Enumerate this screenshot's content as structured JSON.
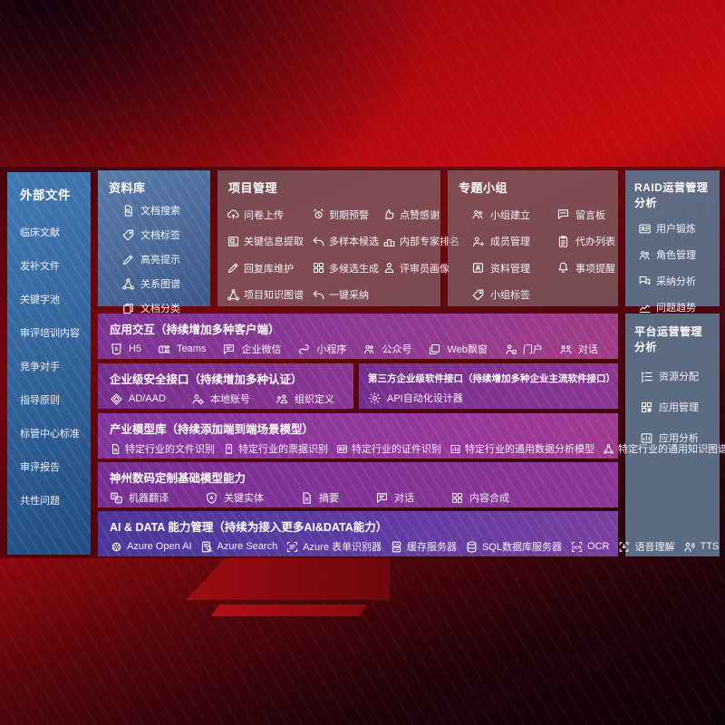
{
  "colors": {
    "background_red": "#c50b10",
    "backdrop_maroon": "#1e030a",
    "sidebar_blue": "#2f6fae",
    "box_gray": "#8f8a93",
    "slate_gray_blue": "#5d728a",
    "row_purple": "#8136a0",
    "ai_row_indigo": "#5d3ba3"
  },
  "sidebar": {
    "title": "外部文件",
    "items": [
      {
        "label": "临床文献"
      },
      {
        "label": "发补文件"
      },
      {
        "label": "关键字池"
      },
      {
        "label": "审评培训内容"
      },
      {
        "label": "竞争对手"
      },
      {
        "label": "指导原则"
      },
      {
        "label": "标管中心标准"
      },
      {
        "label": "审评报告"
      },
      {
        "label": "共性问题"
      }
    ]
  },
  "top_boxes": [
    {
      "title": "资料库",
      "items": [
        {
          "icon": "doc-search",
          "label": "文档搜索"
        },
        {
          "icon": "tag",
          "label": "文档标签"
        },
        {
          "icon": "pencil",
          "label": "高亮提示"
        },
        {
          "icon": "network",
          "label": "关系图谱"
        },
        {
          "icon": "docs",
          "label": "文档分类"
        }
      ]
    },
    {
      "title": "项目管理",
      "items": [
        {
          "icon": "cloud-upload",
          "label": "问卷上传"
        },
        {
          "icon": "alarm",
          "label": "到期预警"
        },
        {
          "icon": "thumbs-up",
          "label": "点赞感谢"
        },
        {
          "icon": "image-doc",
          "label": "关键信息提取"
        },
        {
          "icon": "reply-arrow",
          "label": "多样本候选"
        },
        {
          "icon": "podium",
          "label": "内部专家排名"
        },
        {
          "icon": "pencil",
          "label": "回复库维护"
        },
        {
          "icon": "puzzle-grid",
          "label": "多候选生成"
        },
        {
          "icon": "person",
          "label": "评审员画像"
        },
        {
          "icon": "network",
          "label": "项目知识图谱"
        },
        {
          "icon": "reply-arrow",
          "label": "一键采纳"
        }
      ]
    },
    {
      "title": "专题小组",
      "items": [
        {
          "icon": "people",
          "label": "小组建立"
        },
        {
          "icon": "bbs",
          "label": "留言板"
        },
        {
          "icon": "person-add",
          "label": "成员管理"
        },
        {
          "icon": "clipboard",
          "label": "代办列表"
        },
        {
          "icon": "card-box",
          "label": "资料管理"
        },
        {
          "icon": "bell",
          "label": "事项提醒"
        },
        {
          "icon": "tag",
          "label": "小组标签"
        }
      ]
    },
    {
      "title": "RAID运营管理分析",
      "items": [
        {
          "icon": "id-card",
          "label": "用户锻炼"
        },
        {
          "icon": "people",
          "label": "角色管理"
        },
        {
          "icon": "chat-qa",
          "label": "采纳分析"
        },
        {
          "icon": "trend",
          "label": "问题趋势"
        }
      ]
    }
  ],
  "platform_box": {
    "title": "平台运营管理分析",
    "items": [
      {
        "icon": "list",
        "label": "资源分配"
      },
      {
        "icon": "grid",
        "label": "应用管理"
      },
      {
        "icon": "chart-image",
        "label": "应用分析"
      }
    ]
  },
  "interaction_row": {
    "title": "应用交互（持续增加多种客户端）",
    "items": [
      {
        "icon": "html5",
        "label": "H5"
      },
      {
        "icon": "teams",
        "label": "Teams"
      },
      {
        "icon": "chat",
        "label": "企业微信"
      },
      {
        "icon": "miniprogram",
        "label": "小程序"
      },
      {
        "icon": "official-account",
        "label": "公众号"
      },
      {
        "icon": "web-window",
        "label": "Web飘窗"
      },
      {
        "icon": "portal",
        "label": "门户"
      },
      {
        "icon": "dialog",
        "label": "对话"
      }
    ]
  },
  "security_box": {
    "title": "企业级安全接口（持续增加多种认证）",
    "items": [
      {
        "icon": "ad-diamond",
        "label": "AD/AAD"
      },
      {
        "icon": "person-gear",
        "label": "本地账号"
      },
      {
        "icon": "org-people",
        "label": "组织定义"
      }
    ]
  },
  "third_party_box": {
    "title": "第三方企业级软件接口（持续增加多种企业主流软件接口）",
    "items": [
      {
        "icon": "api-gear",
        "label": "API自动化设计器"
      }
    ]
  },
  "industry_row": {
    "title": "产业模型库（持续添加端到端场景模型）",
    "items": [
      {
        "icon": "doc",
        "label": "特定行业的文件识别"
      },
      {
        "icon": "receipt",
        "label": "特定行业的票据识别"
      },
      {
        "icon": "id-card",
        "label": "特定行业的证件识别"
      },
      {
        "icon": "chart-image",
        "label": "特定行业的通用数据分析模型"
      },
      {
        "icon": "network",
        "label": "特定行业的通用知识图谱模型"
      }
    ]
  },
  "base_row": {
    "title": "神州数码定制基础模型能力",
    "items": [
      {
        "icon": "translate",
        "label": "机器翻译"
      },
      {
        "icon": "shield-a",
        "label": "关键实体"
      },
      {
        "icon": "doc",
        "label": "摘要"
      },
      {
        "icon": "chat",
        "label": "对话"
      },
      {
        "icon": "puzzle-grid",
        "label": "内容合成"
      }
    ]
  },
  "aidata_row": {
    "title": "AI & DATA 能力管理（持续为接入更多AI&DATA能力）",
    "items": [
      {
        "icon": "openai",
        "label": "Azure Open AI"
      },
      {
        "icon": "search-doc",
        "label": "Azure Search"
      },
      {
        "icon": "form-frame",
        "label": "Azure 表单识别器"
      },
      {
        "icon": "server",
        "label": "缓存服务器"
      },
      {
        "icon": "database",
        "label": "SQL数据库服务器"
      },
      {
        "icon": "ocr-frame",
        "label": "OCR"
      },
      {
        "icon": "voice-frame",
        "label": "语音理解"
      },
      {
        "icon": "tts-person",
        "label": "TTS"
      }
    ]
  }
}
